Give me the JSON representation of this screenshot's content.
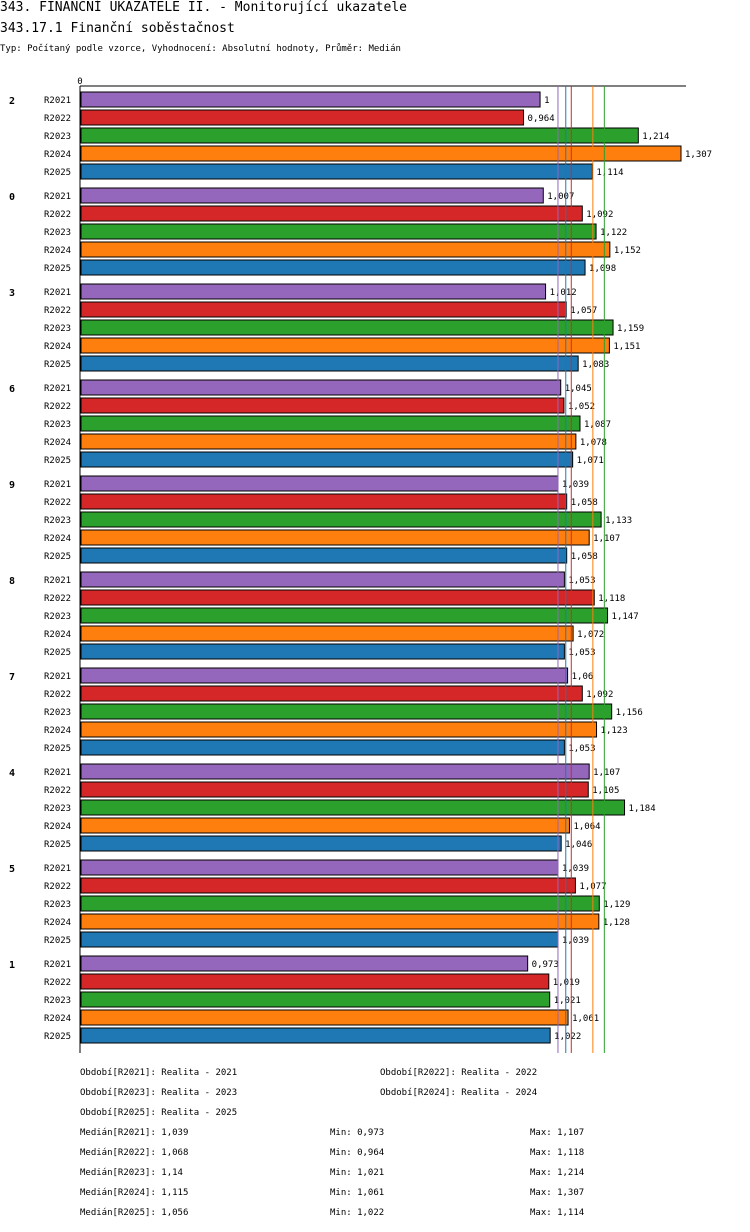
{
  "header": {
    "title": "343. FINANČNÍ UKAZATELE II. - Monitorující ukazatele",
    "subtitle": "343.17.1 Finanční soběstačnost",
    "typ": "Typ: Počítaný podle vzorce, Vyhodnocení: Absolutní hodnoty, Průměr: Medián"
  },
  "colors": {
    "R2021": "#9467bd",
    "R2022": "#d62728",
    "R2023": "#2ca02c",
    "R2024": "#ff7f0e",
    "R2025": "#1f77b4"
  },
  "chart_data": {
    "type": "bar",
    "orientation": "horizontal",
    "title": "343.17.1 Finanční soběstačnost",
    "axis_zero_label": "0",
    "xlim": [
      0,
      1.307
    ],
    "series_names": [
      "R2021",
      "R2022",
      "R2023",
      "R2024",
      "R2025"
    ],
    "groups": [
      {
        "label": "2",
        "values": [
          1,
          0.964,
          1.214,
          1.307,
          1.114
        ],
        "labels": [
          "1",
          "0,964",
          "1,214",
          "1,307",
          "1,114"
        ]
      },
      {
        "label": "0",
        "values": [
          1.007,
          1.092,
          1.122,
          1.152,
          1.098
        ],
        "labels": [
          "1,007",
          "1,092",
          "1,122",
          "1,152",
          "1,098"
        ]
      },
      {
        "label": "3",
        "values": [
          1.012,
          1.057,
          1.159,
          1.151,
          1.083
        ],
        "labels": [
          "1,012",
          "1,057",
          "1,159",
          "1,151",
          "1,083"
        ]
      },
      {
        "label": "6",
        "values": [
          1.045,
          1.052,
          1.087,
          1.078,
          1.071
        ],
        "labels": [
          "1,045",
          "1,052",
          "1,087",
          "1,078",
          "1,071"
        ]
      },
      {
        "label": "9",
        "values": [
          1.039,
          1.058,
          1.133,
          1.107,
          1.058
        ],
        "labels": [
          "1,039",
          "1,058",
          "1,133",
          "1,107",
          "1,058"
        ]
      },
      {
        "label": "8",
        "values": [
          1.053,
          1.118,
          1.147,
          1.072,
          1.053
        ],
        "labels": [
          "1,053",
          "1,118",
          "1,147",
          "1,072",
          "1,053"
        ]
      },
      {
        "label": "7",
        "values": [
          1.06,
          1.092,
          1.156,
          1.123,
          1.053
        ],
        "labels": [
          "1,06",
          "1,092",
          "1,156",
          "1,123",
          "1,053"
        ]
      },
      {
        "label": "4",
        "values": [
          1.107,
          1.105,
          1.184,
          1.064,
          1.046
        ],
        "labels": [
          "1,107",
          "1,105",
          "1,184",
          "1,064",
          "1,046"
        ]
      },
      {
        "label": "5",
        "values": [
          1.039,
          1.077,
          1.129,
          1.128,
          1.039
        ],
        "labels": [
          "1,039",
          "1,077",
          "1,129",
          "1,128",
          "1,039"
        ]
      },
      {
        "label": "1",
        "values": [
          0.973,
          1.019,
          1.021,
          1.061,
          1.022
        ],
        "labels": [
          "0,973",
          "1,019",
          "1,021",
          "1,061",
          "1,022"
        ]
      }
    ],
    "median_lines": [
      {
        "series": "R2021",
        "value": 1.039
      },
      {
        "series": "R2022",
        "value": 1.068
      },
      {
        "series": "R2023",
        "value": 1.14
      },
      {
        "series": "R2024",
        "value": 1.115
      },
      {
        "series": "R2025",
        "value": 1.056
      }
    ]
  },
  "legend": {
    "periods": [
      "Období[R2021]: Realita - 2021",
      "Období[R2022]: Realita - 2022",
      "Období[R2023]: Realita - 2023",
      "Období[R2024]: Realita - 2024",
      "Období[R2025]: Realita - 2025"
    ],
    "stats": [
      {
        "median": "Medián[R2021]: 1,039",
        "min": "Min: 0,973",
        "max": "Max: 1,107"
      },
      {
        "median": "Medián[R2022]: 1,068",
        "min": "Min: 0,964",
        "max": "Max: 1,118"
      },
      {
        "median": "Medián[R2023]: 1,14",
        "min": "Min: 1,021",
        "max": "Max: 1,214"
      },
      {
        "median": "Medián[R2024]: 1,115",
        "min": "Min: 1,061",
        "max": "Max: 1,307"
      },
      {
        "median": "Medián[R2025]: 1,056",
        "min": "Min: 1,022",
        "max": "Max: 1,114"
      }
    ]
  }
}
